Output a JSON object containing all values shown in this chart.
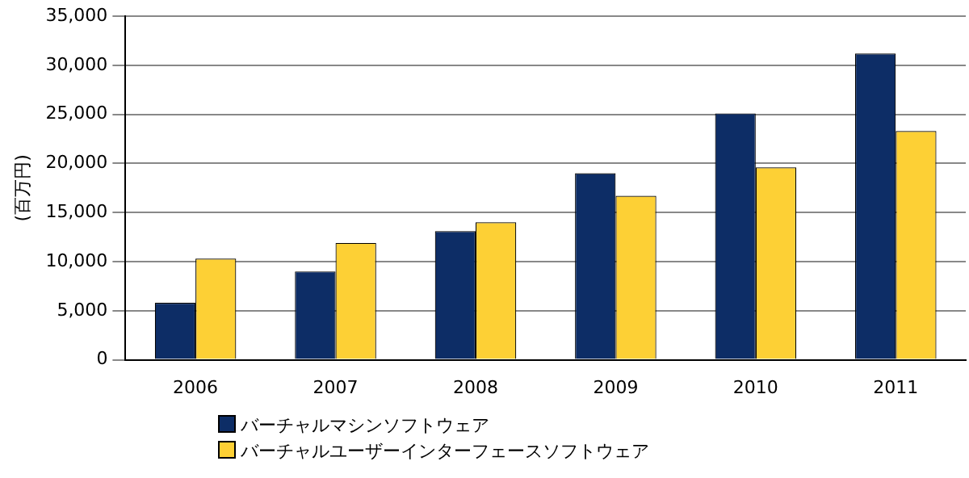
{
  "chart_data": {
    "type": "bar",
    "ylabel": "(百万円)",
    "categories": [
      "2006",
      "2007",
      "2008",
      "2009",
      "2010",
      "2011"
    ],
    "series": [
      {
        "name": "バーチャルマシンソフトウェア",
        "color": "#0d2d66",
        "values": [
          5800,
          9000,
          13100,
          19000,
          25100,
          31200
        ]
      },
      {
        "name": "バーチャルユーザーインターフェースソフトウェア",
        "color": "#fdd035",
        "values": [
          10300,
          11900,
          14000,
          16700,
          19600,
          23300
        ]
      }
    ],
    "ylim": [
      0,
      35000
    ],
    "yticks": [
      0,
      {
        "value": 5000,
        "label": "5,000"
      },
      {
        "value": 10000,
        "label": "10,000"
      },
      {
        "value": 15000,
        "label": "15,000"
      },
      {
        "value": 20000,
        "label": "20,000"
      },
      {
        "value": 25000,
        "label": "25,000"
      },
      {
        "value": 30000,
        "label": "30,000"
      },
      {
        "value": 35000,
        "label": "35,000"
      }
    ],
    "grid": "y",
    "legend": "bottom"
  }
}
